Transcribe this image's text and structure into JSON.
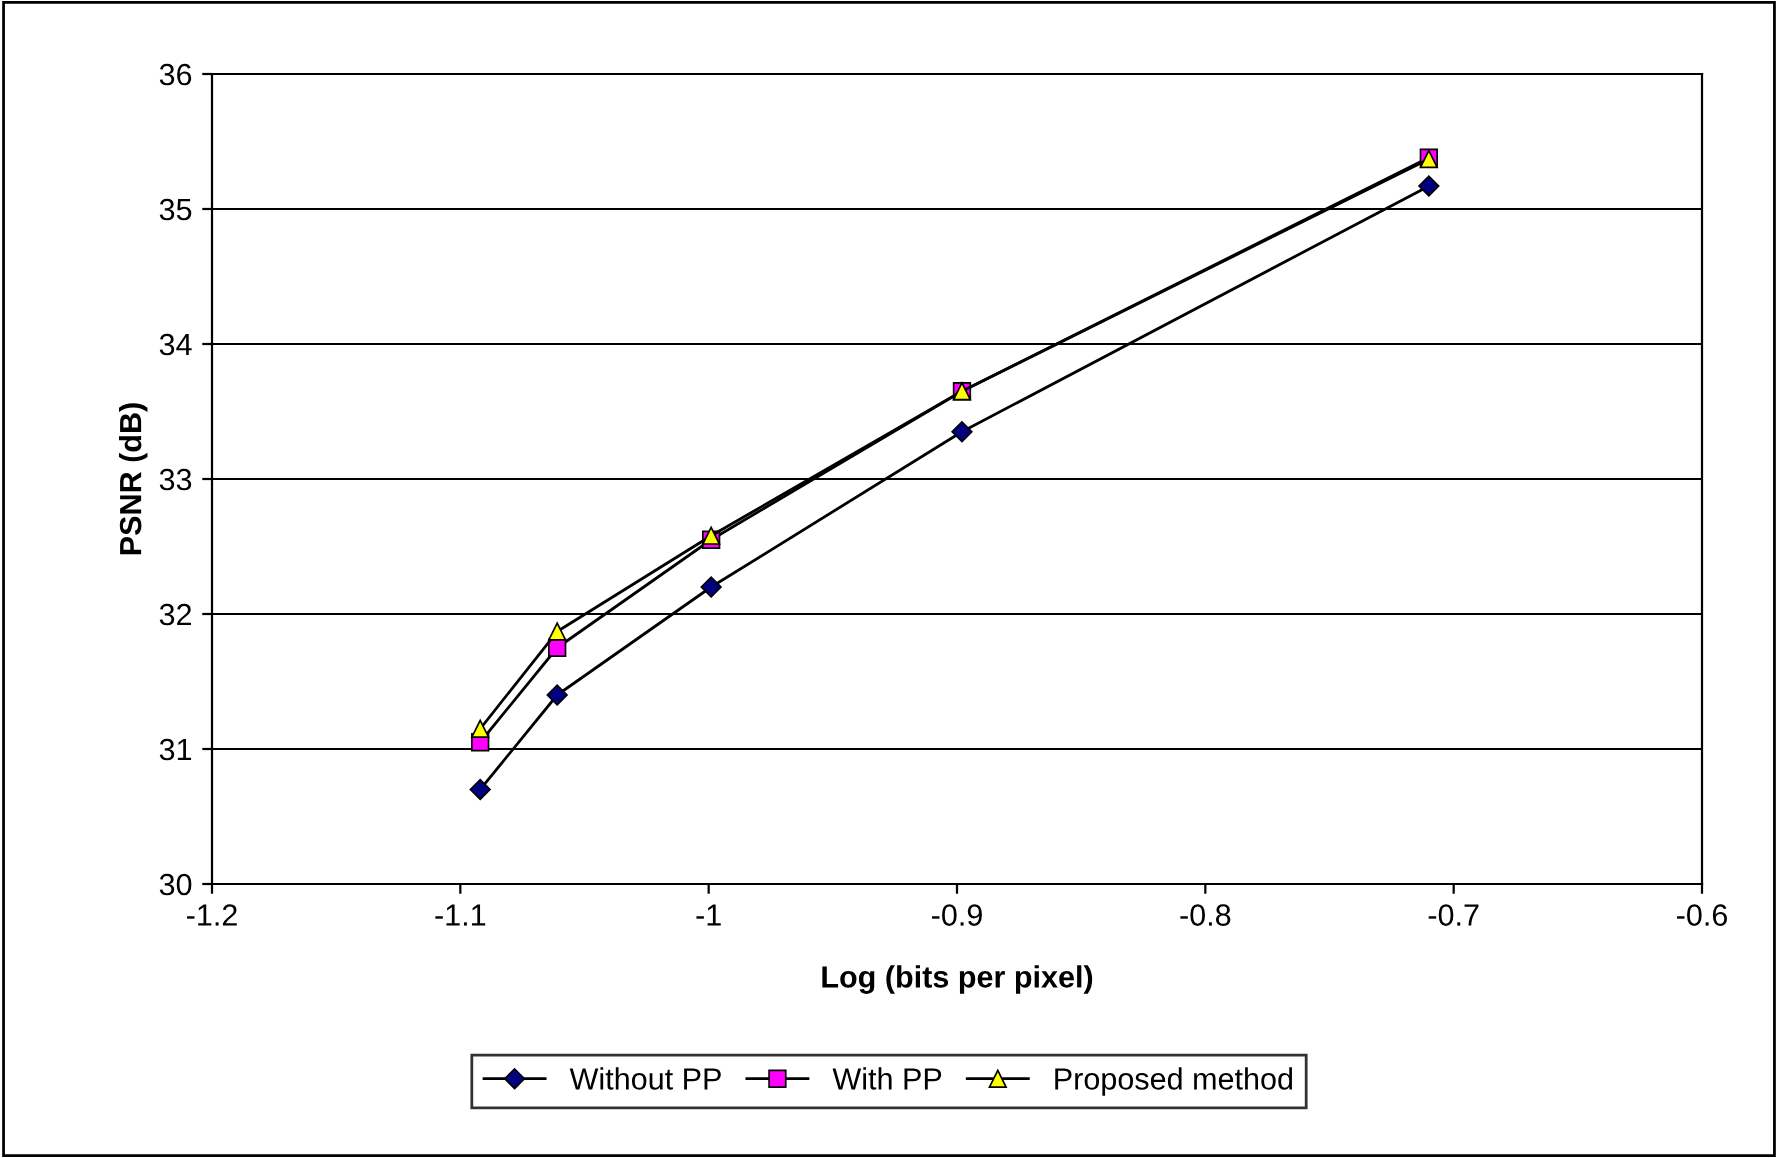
{
  "chart_data": {
    "type": "line",
    "xlabel": "Log (bits per pixel)",
    "ylabel": "PSNR (dB)",
    "xlim": [
      -1.2,
      -0.6
    ],
    "xticks": [
      -1.2,
      -1.1,
      -1,
      -0.9,
      -0.8,
      -0.7,
      -0.6
    ],
    "ylim": [
      30,
      36
    ],
    "yticks": [
      30,
      31,
      32,
      33,
      34,
      35,
      36
    ],
    "grid": "y",
    "legend": "bottom",
    "series": [
      {
        "name": "Without PP",
        "color": "#000080",
        "marker": "diamond",
        "x": [
          -1.092,
          -1.061,
          -0.999,
          -0.898,
          -0.71
        ],
        "values": [
          30.7,
          31.4,
          32.2,
          33.35,
          35.17
        ]
      },
      {
        "name": "With PP",
        "color": "#ff00ff",
        "marker": "square",
        "x": [
          -1.092,
          -1.061,
          -0.999,
          -0.898,
          -0.71
        ],
        "values": [
          31.05,
          31.75,
          32.55,
          33.65,
          35.38
        ]
      },
      {
        "name": "Proposed method",
        "color": "#ffff00",
        "marker": "triangle",
        "x": [
          -1.092,
          -1.061,
          -0.999,
          -0.898,
          -0.71
        ],
        "values": [
          31.15,
          31.87,
          32.58,
          33.65,
          35.37
        ]
      }
    ]
  }
}
